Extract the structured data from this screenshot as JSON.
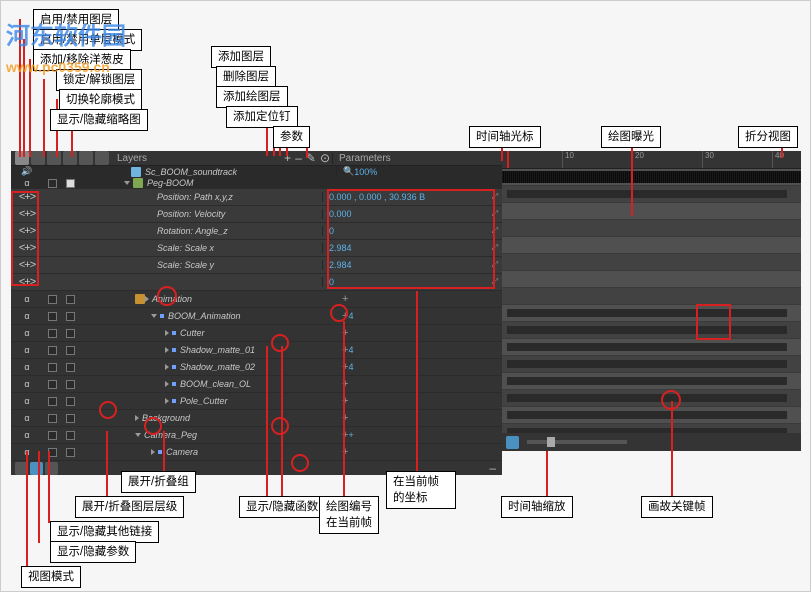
{
  "watermark_main": "河东软件园",
  "watermark_sub": "www.pc0359.cn",
  "callouts": {
    "c01": "启用/禁用图层",
    "c02": "启用/禁用单层模式",
    "c03": "添加/移除洋葱皮",
    "c04": "锁定/解锁图层",
    "c05": "切换轮廓模式",
    "c06": "显示/隐藏缩略图",
    "c07": "添加图层",
    "c08": "删除图层",
    "c09": "添加绘图层",
    "c10": "添加定位钉",
    "c11": "参数",
    "c12": "时间轴光标",
    "c13": "绘图曝光",
    "c14": "折分视图",
    "c15": "展开/折叠组",
    "c16": "展开/折叠图层层级",
    "c17": "显示/隐藏其他链接",
    "c18": "显示/隐藏参数",
    "c19": "视图模式",
    "c20": "显示/隐藏函数",
    "c21": "绘图编号在当前帧",
    "c22": "在当前帧的坐标",
    "c23": "时间轴缩放",
    "c24": "画故关键帧"
  },
  "layers_label": "Layers",
  "params_label": "Parameters",
  "sound_name": "Sc_BOOM_soundtrack",
  "peg_name": "Peg-BOOM",
  "zoom_value": "100%",
  "params": [
    {
      "n": "Position: Path x,y,z",
      "v": "0.000 , 0.000 , 30.936 B"
    },
    {
      "n": "Position: Velocity",
      "v": "0.000"
    },
    {
      "n": "Rotation: Angle_z",
      "v": "0"
    },
    {
      "n": "Scale: Scale x",
      "v": "2.984"
    },
    {
      "n": "Scale: Scale y",
      "v": "2.984"
    },
    {
      "n": "",
      "v": "0"
    }
  ],
  "rows": [
    {
      "n": "Animation",
      "lock": true
    },
    {
      "n": "BOOM_Animation",
      "plus": "4",
      "tri": "d",
      "dot": true
    },
    {
      "n": "Cutter",
      "tri": "r",
      "dot": true
    },
    {
      "n": "Shadow_matte_01",
      "plus": "4",
      "tri": "r",
      "dot": true
    },
    {
      "n": "Shadow_matte_02",
      "plus": "4",
      "tri": "r",
      "dot": true
    },
    {
      "n": "BOOM_clean_OL",
      "tri": "r",
      "dot": true
    },
    {
      "n": "Pole_Cutter",
      "tri": "r",
      "dot": true
    },
    {
      "n": "Background",
      "tri": "r"
    },
    {
      "n": "Camera_Peg",
      "plus": "+",
      "tri": "d"
    },
    {
      "n": "Camera",
      "tri": "r",
      "dot": true
    }
  ],
  "ruler": [
    {
      "p": 60,
      "l": "10"
    },
    {
      "p": 130,
      "l": "20"
    },
    {
      "p": 200,
      "l": "30"
    },
    {
      "p": 270,
      "l": "40"
    }
  ]
}
